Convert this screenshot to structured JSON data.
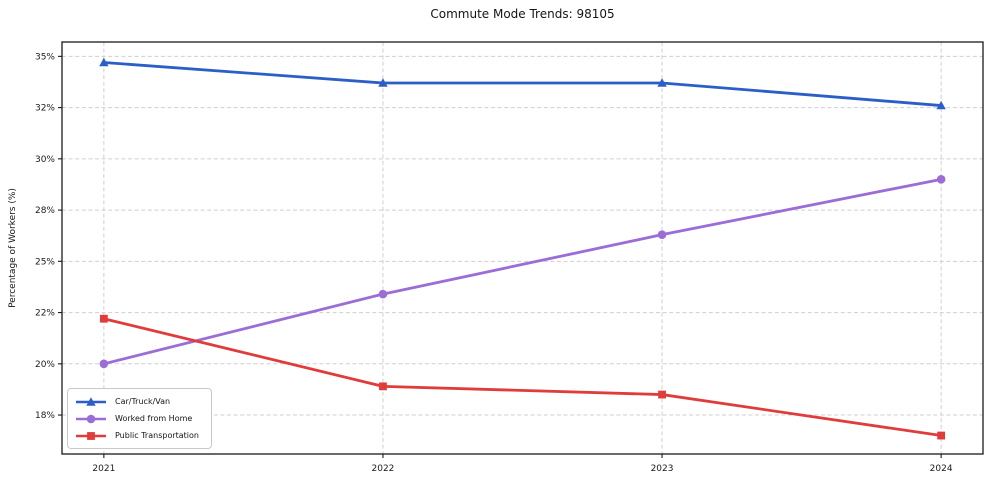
{
  "chart_data": {
    "type": "line",
    "title": "Commute Mode Trends: 98105",
    "xlabel": "",
    "ylabel": "Percentage of Workers (%)",
    "categories": [
      "2021",
      "2022",
      "2023",
      "2024"
    ],
    "series": [
      {
        "name": "Car/Truck/Van",
        "color": "#2b5fc7",
        "marker": "triangle",
        "values": [
          34.7,
          33.7,
          33.7,
          32.6
        ]
      },
      {
        "name": "Worked from Home",
        "color": "#9a6dd7",
        "marker": "circle",
        "values": [
          20.0,
          23.4,
          26.3,
          29.0
        ]
      },
      {
        "name": "Public Transportation",
        "color": "#e03c3c",
        "marker": "square",
        "values": [
          22.2,
          18.9,
          18.5,
          16.5
        ]
      }
    ],
    "ylim": [
      15.6,
      35.7
    ],
    "y_ticks": [
      {
        "value": 17.5,
        "label": "18%"
      },
      {
        "value": 20.0,
        "label": "20%"
      },
      {
        "value": 22.5,
        "label": "22%"
      },
      {
        "value": 25.0,
        "label": "25%"
      },
      {
        "value": 27.5,
        "label": "28%"
      },
      {
        "value": 30.0,
        "label": "30%"
      },
      {
        "value": 32.5,
        "label": "32%"
      },
      {
        "value": 35.0,
        "label": "35%"
      }
    ],
    "grid": true,
    "grid_color": "#cfcfcf",
    "legend_position": "lower left",
    "background_color": "#ffffff"
  }
}
